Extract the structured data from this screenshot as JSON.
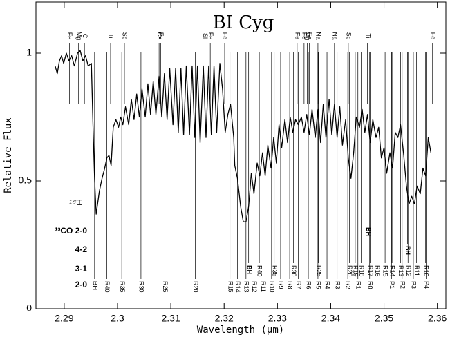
{
  "chart_data": {
    "type": "line",
    "title": "BI Cyg",
    "x_label": "Wavelength (μm)",
    "y_label": "Relative Flux",
    "color": "#000000",
    "xlim": [
      2.2847,
      2.3616
    ],
    "ylim": [
      0,
      1.2
    ],
    "xticks": [
      2.29,
      2.3,
      2.31,
      2.32,
      2.33,
      2.34,
      2.35,
      2.36
    ],
    "yticks": [
      0,
      0.5,
      1
    ],
    "x": [
      2.2883,
      2.2887,
      2.2891,
      2.2895,
      2.2899,
      2.2904,
      2.2909,
      2.2914,
      2.2919,
      2.2925,
      2.293,
      2.2935,
      2.294,
      2.2945,
      2.2951,
      2.2954,
      2.2957,
      2.296,
      2.2962,
      2.2966,
      2.2971,
      2.2976,
      2.298,
      2.2984,
      2.2988,
      2.2992,
      2.2997,
      2.3002,
      2.3006,
      2.301,
      2.3015,
      2.3021,
      2.3026,
      2.3031,
      2.3036,
      2.3041,
      2.3046,
      2.3052,
      2.3057,
      2.3062,
      2.3067,
      2.3072,
      2.3078,
      2.3083,
      2.3088,
      2.3093,
      2.3098,
      2.3104,
      2.3109,
      2.3114,
      2.3119,
      2.3124,
      2.3129,
      2.3135,
      2.314,
      2.3145,
      2.315,
      2.3155,
      2.3161,
      2.3166,
      2.3171,
      2.3176,
      2.3181,
      2.3186,
      2.3192,
      2.3197,
      2.3202,
      2.3207,
      2.3212,
      2.3218,
      2.322,
      2.3225,
      2.3231,
      2.3236,
      2.3241,
      2.3246,
      2.3251,
      2.3256,
      2.3262,
      2.3267,
      2.3272,
      2.3277,
      2.3282,
      2.3288,
      2.3293,
      2.3298,
      2.3303,
      2.3308,
      2.3314,
      2.3319,
      2.3324,
      2.3329,
      2.3334,
      2.3339,
      2.3345,
      2.335,
      2.3355,
      2.336,
      2.3365,
      2.3371,
      2.3376,
      2.3381,
      2.3386,
      2.3391,
      2.3397,
      2.3402,
      2.3407,
      2.3412,
      2.3417,
      2.3422,
      2.3428,
      2.3433,
      2.3438,
      2.3443,
      2.3448,
      2.3454,
      2.3459,
      2.3464,
      2.3469,
      2.3474,
      2.3479,
      2.3485,
      2.349,
      2.3495,
      2.35,
      2.3505,
      2.3511,
      2.3516,
      2.3521,
      2.3526,
      2.3531,
      2.3537,
      2.3542,
      2.3547,
      2.3552,
      2.3557,
      2.3562,
      2.3568,
      2.3573,
      2.3578,
      2.3583,
      2.3588
    ],
    "values": [
      0.95,
      0.92,
      0.97,
      0.99,
      0.96,
      1.0,
      0.97,
      0.99,
      0.95,
      1.0,
      1.01,
      0.97,
      0.99,
      0.95,
      0.96,
      0.72,
      0.51,
      0.37,
      0.4,
      0.46,
      0.51,
      0.55,
      0.59,
      0.6,
      0.56,
      0.71,
      0.74,
      0.71,
      0.75,
      0.72,
      0.79,
      0.72,
      0.82,
      0.74,
      0.84,
      0.75,
      0.86,
      0.75,
      0.88,
      0.76,
      0.89,
      0.76,
      0.91,
      0.75,
      0.92,
      0.74,
      0.94,
      0.72,
      0.94,
      0.69,
      0.94,
      0.68,
      0.95,
      0.68,
      0.95,
      0.67,
      0.95,
      0.65,
      0.95,
      0.67,
      0.95,
      0.68,
      0.95,
      0.69,
      0.96,
      0.86,
      0.69,
      0.76,
      0.8,
      0.67,
      0.56,
      0.51,
      0.4,
      0.34,
      0.34,
      0.4,
      0.53,
      0.45,
      0.57,
      0.52,
      0.61,
      0.52,
      0.64,
      0.55,
      0.67,
      0.57,
      0.72,
      0.63,
      0.74,
      0.65,
      0.75,
      0.69,
      0.74,
      0.72,
      0.75,
      0.69,
      0.76,
      0.68,
      0.78,
      0.67,
      0.78,
      0.65,
      0.8,
      0.67,
      0.82,
      0.68,
      0.8,
      0.67,
      0.79,
      0.64,
      0.74,
      0.59,
      0.51,
      0.61,
      0.75,
      0.71,
      0.78,
      0.69,
      0.76,
      0.65,
      0.74,
      0.67,
      0.71,
      0.59,
      0.63,
      0.53,
      0.61,
      0.55,
      0.69,
      0.67,
      0.72,
      0.6,
      0.48,
      0.41,
      0.44,
      0.41,
      0.48,
      0.45,
      0.55,
      0.52,
      0.67,
      0.61
    ],
    "sigma": {
      "label": "1σ",
      "value": 0.018
    },
    "atomic_lines": [
      {
        "label": "Fe",
        "x": 2.291
      },
      {
        "label": "Mg",
        "x": 2.2927
      },
      {
        "label": "C",
        "x": 2.2938
      },
      {
        "label": "Ti",
        "x": 2.2987
      },
      {
        "label": "Sc",
        "x": 2.3013
      },
      {
        "label": "Ca",
        "x": 2.3078
      },
      {
        "label": "Fe",
        "x": 2.3081
      },
      {
        "label": "Si",
        "x": 2.3164
      },
      {
        "label": "Fe",
        "x": 2.3174
      },
      {
        "label": "Fe",
        "x": 2.3201
      },
      {
        "label": "Fe",
        "x": 2.3337
      },
      {
        "label": "Fe",
        "x": 2.335
      },
      {
        "label": "Mg",
        "x": 2.3356
      },
      {
        "label": "Fe",
        "x": 2.336
      },
      {
        "label": "Na",
        "x": 2.3376
      },
      {
        "label": "Na",
        "x": 2.3407
      },
      {
        "label": "Sc",
        "x": 2.3433
      },
      {
        "label": "Ti",
        "x": 2.3469
      },
      {
        "label": "Fe",
        "x": 2.3591
      }
    ],
    "co_bands": [
      {
        "name": "2-0",
        "lines": [
          {
            "label": "BH",
            "x": 2.2957
          },
          {
            "label": "R40",
            "x": 2.298
          },
          {
            "label": "R35",
            "x": 2.3008
          },
          {
            "label": "R30",
            "x": 2.3044
          },
          {
            "label": "R25",
            "x": 2.3089
          },
          {
            "label": "R20",
            "x": 2.3146
          },
          {
            "label": "R15",
            "x": 2.3211
          },
          {
            "label": "R14",
            "x": 2.3225
          },
          {
            "label": "R13",
            "x": 2.3241
          },
          {
            "label": "R12",
            "x": 2.3256
          },
          {
            "label": "R11",
            "x": 2.3273
          },
          {
            "label": "R10",
            "x": 2.3289
          },
          {
            "label": "R9",
            "x": 2.3306
          },
          {
            "label": "R8",
            "x": 2.3323
          },
          {
            "label": "R7",
            "x": 2.3339
          },
          {
            "label": "R6",
            "x": 2.3358
          },
          {
            "label": "R5",
            "x": 2.3376
          },
          {
            "label": "R4",
            "x": 2.3393
          },
          {
            "label": "R3",
            "x": 2.3412
          },
          {
            "label": "R2",
            "x": 2.3432
          },
          {
            "label": "R1",
            "x": 2.3451
          },
          {
            "label": "R0",
            "x": 2.3473
          },
          {
            "label": "P1",
            "x": 2.3514
          },
          {
            "label": "P2",
            "x": 2.3534
          },
          {
            "label": "P3",
            "x": 2.3555
          },
          {
            "label": "P4",
            "x": 2.3579
          }
        ]
      },
      {
        "name": "3-1",
        "lines": [
          {
            "label": "BH",
            "x": 2.3246
          },
          {
            "label": "R40",
            "x": 2.3266
          },
          {
            "label": "R35",
            "x": 2.3294
          },
          {
            "label": "R30",
            "x": 2.333
          },
          {
            "label": "R25",
            "x": 2.3377
          },
          {
            "label": "R20",
            "x": 2.3435
          },
          {
            "label": "R19",
            "x": 2.3446
          },
          {
            "label": "R18",
            "x": 2.3457
          },
          {
            "label": "R17",
            "x": 2.3474
          },
          {
            "label": "R16",
            "x": 2.3487
          },
          {
            "label": "R15",
            "x": 2.3502
          },
          {
            "label": "R14",
            "x": 2.3515
          },
          {
            "label": "R13",
            "x": 2.3531
          },
          {
            "label": "R12",
            "x": 2.3545
          },
          {
            "label": "R11",
            "x": 2.3561
          },
          {
            "label": "R10",
            "x": 2.3578
          }
        ]
      },
      {
        "name": "4-2",
        "lines": [
          {
            "label": "BH",
            "x": 2.3544
          }
        ]
      },
      {
        "name": "¹³CO 2-0",
        "lines": [
          {
            "label": "BH",
            "x": 2.347
          }
        ]
      }
    ]
  }
}
